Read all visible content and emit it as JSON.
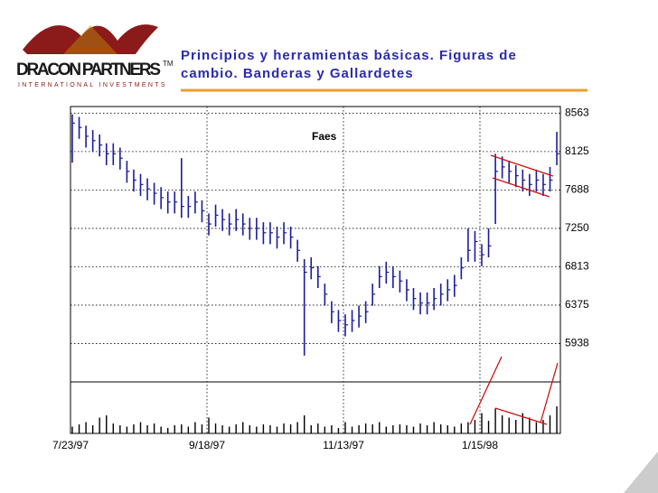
{
  "logo": {
    "name": "DRACON PARTNERS",
    "tm": "TM",
    "tagline": "INTERNATIONAL INVESTMENTS"
  },
  "chart_data": {
    "type": "ohlc",
    "title": [
      "Principios y herramientas básicas. Figuras de",
      "cambio. Banderas y Gallardetes"
    ],
    "annotation": "Faes",
    "color": "#1c1c9c",
    "categories": [
      "7/23/97",
      null,
      null,
      null,
      null,
      null,
      null,
      null,
      null,
      null,
      null,
      null,
      null,
      null,
      null,
      null,
      null,
      null,
      null,
      null,
      "9/18/97",
      null,
      null,
      null,
      null,
      null,
      null,
      null,
      null,
      null,
      null,
      null,
      null,
      null,
      null,
      null,
      null,
      null,
      null,
      null,
      "11/13/97",
      null,
      null,
      null,
      null,
      null,
      null,
      null,
      null,
      null,
      null,
      null,
      null,
      null,
      null,
      null,
      null,
      null,
      null,
      null,
      "1/15/98",
      null,
      null,
      null,
      null,
      null,
      null,
      null,
      null,
      null,
      null,
      null
    ],
    "high": [
      8550,
      8520,
      8420,
      8370,
      8320,
      8220,
      8220,
      8170,
      8020,
      7920,
      7870,
      7820,
      7770,
      7720,
      7670,
      7670,
      8050,
      7620,
      7670,
      7570,
      7420,
      7520,
      7470,
      7420,
      7470,
      7420,
      7370,
      7370,
      7320,
      7320,
      7270,
      7320,
      7270,
      7120,
      6900,
      6920,
      6820,
      6620,
      6420,
      6320,
      6270,
      6320,
      6370,
      6420,
      6620,
      6820,
      6870,
      6820,
      6770,
      6670,
      6570,
      6520,
      6520,
      6570,
      6620,
      6670,
      6720,
      6920,
      7250,
      7220,
      7070,
      7250,
      8100,
      8070,
      8020,
      7970,
      7920,
      7870,
      7920,
      7870,
      7950,
      8350
    ],
    "low": [
      8000,
      8270,
      8170,
      8120,
      8070,
      7970,
      7970,
      7920,
      7770,
      7670,
      7620,
      7570,
      7520,
      7470,
      7420,
      7420,
      7370,
      7370,
      7420,
      7320,
      7170,
      7270,
      7220,
      7170,
      7220,
      7170,
      7120,
      7120,
      7070,
      7070,
      7020,
      7070,
      7020,
      6870,
      5800,
      6670,
      6570,
      6370,
      6170,
      6070,
      6020,
      6070,
      6120,
      6170,
      6370,
      6570,
      6620,
      6570,
      6520,
      6420,
      6320,
      6270,
      6270,
      6320,
      6370,
      6420,
      6470,
      6670,
      6870,
      6870,
      6820,
      6920,
      7300,
      7820,
      7770,
      7720,
      7670,
      7620,
      7670,
      7620,
      7670,
      7970
    ],
    "close": [
      8450,
      8400,
      8300,
      8250,
      8200,
      8100,
      8100,
      8050,
      7900,
      7800,
      7750,
      7700,
      7650,
      7600,
      7550,
      7550,
      7500,
      7500,
      7550,
      7450,
      7300,
      7400,
      7350,
      7300,
      7350,
      7300,
      7250,
      7250,
      7200,
      7200,
      7150,
      7200,
      7150,
      7000,
      6750,
      6800,
      6700,
      6500,
      6300,
      6200,
      6150,
      6200,
      6250,
      6300,
      6500,
      6700,
      6750,
      6700,
      6650,
      6550,
      6450,
      6400,
      6400,
      6450,
      6500,
      6550,
      6600,
      6800,
      7000,
      7100,
      6950,
      7050,
      7900,
      7950,
      7900,
      7850,
      7800,
      7750,
      7800,
      7750,
      7800,
      8100
    ],
    "volume": [
      15,
      20,
      25,
      18,
      35,
      40,
      22,
      18,
      15,
      20,
      25,
      18,
      22,
      15,
      12,
      18,
      20,
      15,
      25,
      20,
      35,
      22,
      18,
      15,
      20,
      25,
      18,
      15,
      20,
      18,
      15,
      22,
      20,
      25,
      40,
      18,
      22,
      15,
      18,
      12,
      25,
      15,
      18,
      22,
      20,
      25,
      15,
      18,
      20,
      18,
      15,
      22,
      18,
      25,
      20,
      18,
      15,
      22,
      25,
      30,
      45,
      28,
      55,
      40,
      35,
      30,
      45,
      35,
      25,
      30,
      40,
      60
    ],
    "volume_lim": [
      0,
      100
    ],
    "ylim": [
      5500,
      8700
    ],
    "yticks": [
      5938,
      6375,
      6813,
      7250,
      7688,
      8125,
      8563
    ],
    "grid": true
  }
}
